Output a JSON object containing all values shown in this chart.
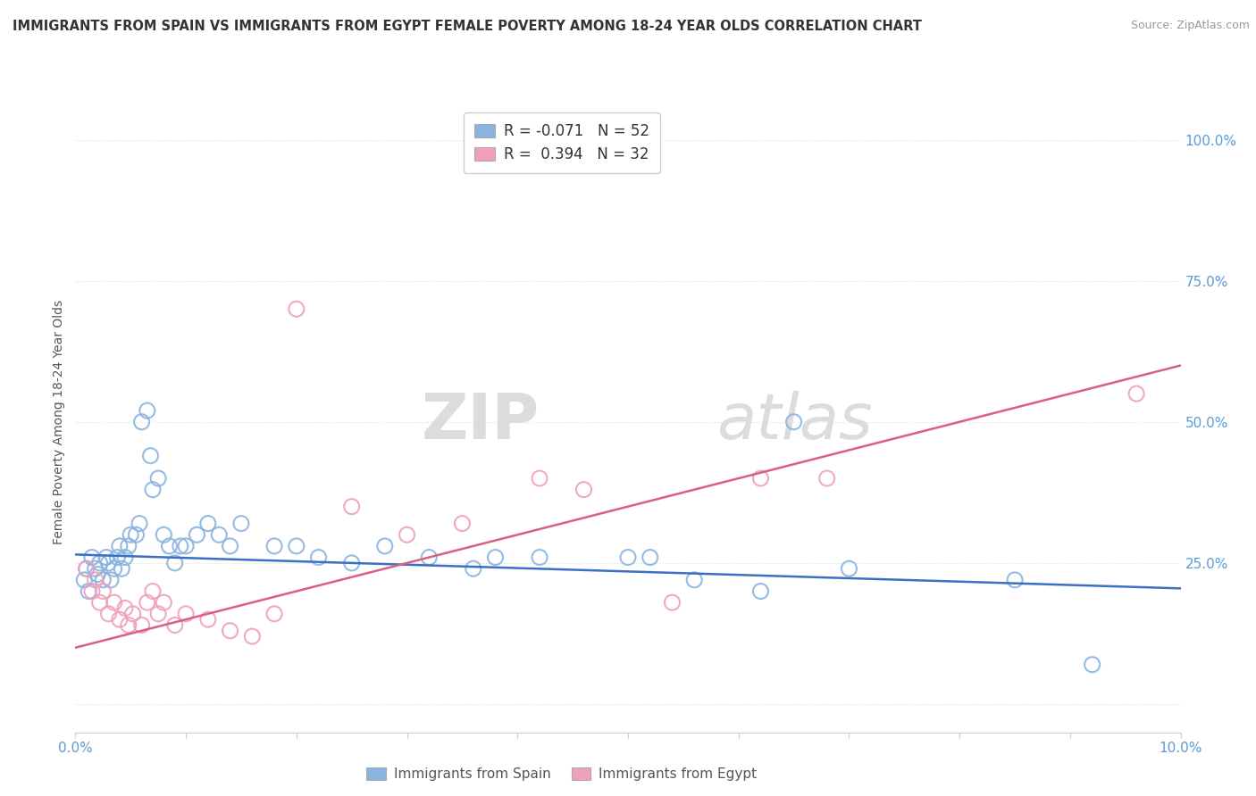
{
  "title": "IMMIGRANTS FROM SPAIN VS IMMIGRANTS FROM EGYPT FEMALE POVERTY AMONG 18-24 YEAR OLDS CORRELATION CHART",
  "source": "Source: ZipAtlas.com",
  "ylabel": "Female Poverty Among 18-24 Year Olds",
  "ylabel_right_ticks": [
    "100.0%",
    "75.0%",
    "50.0%",
    "25.0%",
    "0%"
  ],
  "ylabel_right_vals": [
    1.0,
    0.75,
    0.5,
    0.25,
    0.0
  ],
  "legend_entry1": "R = -0.071   N = 52",
  "legend_entry2": "R =  0.394   N = 32",
  "legend_label1": "Immigrants from Spain",
  "legend_label2": "Immigrants from Egypt",
  "color_spain": "#8AB4E0",
  "color_egypt": "#F0A0B8",
  "watermark_zip": "ZIP",
  "watermark_atlas": "atlas",
  "background_color": "#FFFFFF",
  "grid_color": "#DDDDDD",
  "xlim": [
    0.0,
    0.1
  ],
  "ylim": [
    -0.05,
    1.05
  ],
  "spain_x": [
    0.0008,
    0.001,
    0.0012,
    0.0015,
    0.0018,
    0.002,
    0.0022,
    0.0025,
    0.0028,
    0.003,
    0.0032,
    0.0035,
    0.0038,
    0.004,
    0.0042,
    0.0045,
    0.0048,
    0.005,
    0.0055,
    0.0058,
    0.006,
    0.0065,
    0.0068,
    0.007,
    0.0075,
    0.008,
    0.0085,
    0.009,
    0.0095,
    0.01,
    0.011,
    0.012,
    0.013,
    0.014,
    0.015,
    0.018,
    0.02,
    0.022,
    0.025,
    0.028,
    0.032,
    0.036,
    0.038,
    0.042,
    0.05,
    0.052,
    0.056,
    0.062,
    0.065,
    0.07,
    0.085,
    0.092
  ],
  "spain_y": [
    0.22,
    0.24,
    0.2,
    0.26,
    0.24,
    0.23,
    0.25,
    0.22,
    0.26,
    0.25,
    0.22,
    0.24,
    0.26,
    0.28,
    0.24,
    0.26,
    0.28,
    0.3,
    0.3,
    0.32,
    0.5,
    0.52,
    0.44,
    0.38,
    0.4,
    0.3,
    0.28,
    0.25,
    0.28,
    0.28,
    0.3,
    0.32,
    0.3,
    0.28,
    0.32,
    0.28,
    0.28,
    0.26,
    0.25,
    0.28,
    0.26,
    0.24,
    0.26,
    0.26,
    0.26,
    0.26,
    0.22,
    0.2,
    0.5,
    0.24,
    0.22,
    0.07
  ],
  "egypt_x": [
    0.001,
    0.0015,
    0.0018,
    0.0022,
    0.0025,
    0.003,
    0.0035,
    0.004,
    0.0045,
    0.0048,
    0.0052,
    0.006,
    0.0065,
    0.007,
    0.0075,
    0.008,
    0.009,
    0.01,
    0.012,
    0.014,
    0.016,
    0.018,
    0.02,
    0.025,
    0.03,
    0.035,
    0.042,
    0.046,
    0.054,
    0.062,
    0.068,
    0.096
  ],
  "egypt_y": [
    0.24,
    0.2,
    0.22,
    0.18,
    0.2,
    0.16,
    0.18,
    0.15,
    0.17,
    0.14,
    0.16,
    0.14,
    0.18,
    0.2,
    0.16,
    0.18,
    0.14,
    0.16,
    0.15,
    0.13,
    0.12,
    0.16,
    0.7,
    0.35,
    0.3,
    0.32,
    0.4,
    0.38,
    0.18,
    0.4,
    0.4,
    0.55
  ],
  "spain_trend_x": [
    0.0,
    0.1
  ],
  "spain_trend_y": [
    0.265,
    0.205
  ],
  "egypt_trend_x": [
    0.0,
    0.1
  ],
  "egypt_trend_y": [
    0.1,
    0.6
  ]
}
